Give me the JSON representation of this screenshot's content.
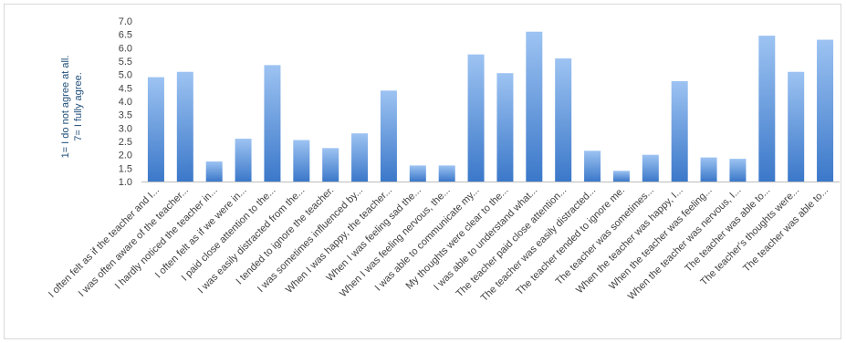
{
  "chart_data": {
    "type": "bar",
    "ylabel_lines": [
      "1= I do not agree at all.",
      "7= I fully agree."
    ],
    "ylim": [
      1.0,
      7.0
    ],
    "yticks": [
      "1.0",
      "1.5",
      "2.0",
      "2.5",
      "3.0",
      "3.5",
      "4.0",
      "4.5",
      "5.0",
      "5.5",
      "6.0",
      "6.5",
      "7.0"
    ],
    "grid": false,
    "legend": "none",
    "colors": {
      "bar_top": "#9dc3f2",
      "bar_bottom": "#3b78c9",
      "axis": "#bfbfbf"
    },
    "categories": [
      "I often felt as if the teacher and I...",
      "I was often aware of the teacher...",
      "I hardly noticed the teacher in...",
      "I often felt as if we were in...",
      "I paid close attention to the...",
      "I was easily distracted from the...",
      "I tended to ignore the teacher.",
      "I was sometimes influenced by...",
      "When I was happy, the teacher...",
      "When I was feeling sad the...",
      "When I was feeling nervous, the...",
      "I was able to communicate my...",
      "My thoughts were clear to the...",
      "I was able to understand what...",
      "The teacher paid close attention...",
      "The teacher was easily distracted...",
      "The teacher tended to ignore me.",
      "The teacher was sometimes...",
      "When the teacher was happy, I...",
      "When the teacher was feeling...",
      "When the teacher was nervous, I...",
      "The teacher was able to...",
      "The teacher's thoughts were...",
      "The teacher was able to..."
    ],
    "values": [
      4.9,
      5.1,
      1.75,
      2.6,
      5.35,
      2.55,
      2.25,
      2.8,
      4.4,
      1.6,
      1.6,
      5.75,
      5.05,
      6.6,
      5.6,
      2.15,
      1.4,
      2.0,
      4.75,
      1.9,
      1.85,
      6.45,
      5.1,
      6.3
    ]
  }
}
